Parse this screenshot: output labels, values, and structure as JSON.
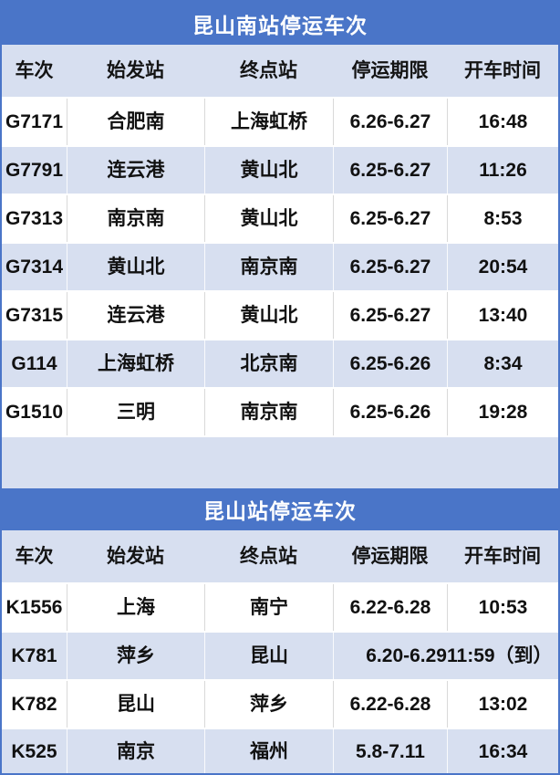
{
  "colors": {
    "title_bar_bg": "#4a75c8",
    "band_row_bg": "#d7dff0",
    "title_text": "#ffffff",
    "cell_text": "#111111"
  },
  "tables": [
    {
      "title": "昆山南站停运车次",
      "columns": [
        "车次",
        "始发站",
        "终点站",
        "停运期限",
        "开车时间"
      ],
      "rows": [
        [
          "G7171",
          "合肥南",
          "上海虹桥",
          "6.26-6.27",
          "16:48"
        ],
        [
          "G7791",
          "连云港",
          "黄山北",
          "6.25-6.27",
          "11:26"
        ],
        [
          "G7313",
          "南京南",
          "黄山北",
          "6.25-6.27",
          "8:53"
        ],
        [
          "G7314",
          "黄山北",
          "南京南",
          "6.25-6.27",
          "20:54"
        ],
        [
          "G7315",
          "连云港",
          "黄山北",
          "6.25-6.27",
          "13:40"
        ],
        [
          "G114",
          "上海虹桥",
          "北京南",
          "6.25-6.26",
          "8:34"
        ],
        [
          "G1510",
          "三明",
          "南京南",
          "6.25-6.26",
          "19:28"
        ]
      ]
    },
    {
      "title": "昆山站停运车次",
      "columns": [
        "车次",
        "始发站",
        "终点站",
        "停运期限",
        "开车时间"
      ],
      "rows": [
        [
          "K1556",
          "上海",
          "南宁",
          "6.22-6.28",
          "10:53"
        ],
        [
          "K781",
          "萍乡",
          "昆山",
          "6.20-6.29",
          "11:59（到）"
        ],
        [
          "K782",
          "昆山",
          "萍乡",
          "6.22-6.28",
          "13:02"
        ],
        [
          "K525",
          "南京",
          "福州",
          "5.8-7.11",
          "16:34"
        ]
      ]
    }
  ]
}
